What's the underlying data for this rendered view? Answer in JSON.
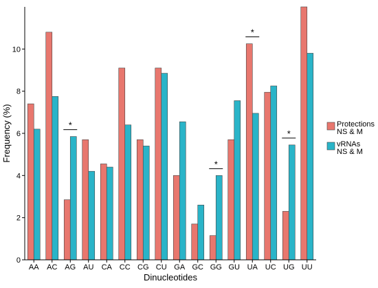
{
  "chart_data": {
    "type": "bar",
    "title": "",
    "xlabel": "Dinucleotides",
    "ylabel": "Frequency (%)",
    "ylim": [
      0,
      12
    ],
    "yticks": [
      0,
      2,
      4,
      6,
      8,
      10
    ],
    "grid": false,
    "legend_position": "right",
    "categories": [
      "AA",
      "AC",
      "AG",
      "AU",
      "CA",
      "CC",
      "CG",
      "CU",
      "GA",
      "GC",
      "GG",
      "GU",
      "UA",
      "UC",
      "UG",
      "UU"
    ],
    "series": [
      {
        "name": "Protections",
        "name2": "NS & M",
        "color": "#e8776e",
        "values": [
          7.4,
          10.8,
          2.85,
          5.7,
          4.55,
          9.1,
          5.7,
          9.1,
          4.0,
          1.7,
          1.15,
          5.7,
          10.25,
          7.95,
          2.3,
          12.0
        ]
      },
      {
        "name": "vRNAs",
        "name2": "NS & M",
        "color": "#2ab4c8",
        "values": [
          6.2,
          7.75,
          5.85,
          4.2,
          4.4,
          6.4,
          5.4,
          8.85,
          6.55,
          2.6,
          4.0,
          7.55,
          6.95,
          8.25,
          5.45,
          9.8
        ]
      }
    ],
    "annotations": [
      {
        "category": "AG",
        "text": "*"
      },
      {
        "category": "GG",
        "text": "*"
      },
      {
        "category": "UA",
        "text": "*"
      },
      {
        "category": "UG",
        "text": "*"
      }
    ]
  }
}
